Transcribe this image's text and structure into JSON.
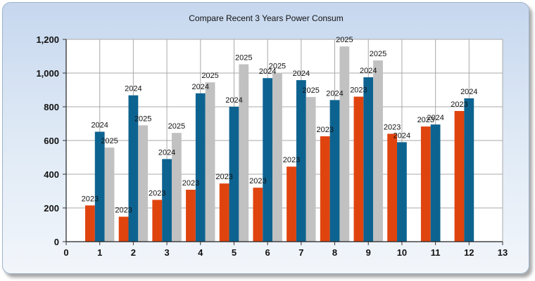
{
  "chart_data": {
    "type": "bar",
    "title": "Compare Recent 3 Years Power Consum",
    "xlabel": "",
    "ylabel": "",
    "categories": [
      1,
      2,
      3,
      4,
      5,
      6,
      7,
      8,
      9,
      10,
      11,
      12
    ],
    "xlim": [
      0,
      13
    ],
    "x_ticks": [
      0,
      1,
      2,
      3,
      4,
      5,
      6,
      7,
      8,
      9,
      10,
      11,
      12,
      13
    ],
    "ylim": [
      0,
      1200
    ],
    "y_ticks": [
      "0",
      "200",
      "400",
      "600",
      "800",
      "1,000",
      "1,200"
    ],
    "grid": true,
    "series": [
      {
        "name": "2023",
        "color": "#e0440e",
        "values": [
          215,
          148,
          248,
          308,
          345,
          320,
          445,
          625,
          860,
          640,
          683,
          775
        ],
        "labels": [
          "2023",
          "2023",
          "2023",
          "2023",
          "2023",
          "2023",
          "2023",
          "2023",
          "2023",
          "2023",
          "2023",
          "2023"
        ]
      },
      {
        "name": "2024",
        "color": "#0d6390",
        "values": [
          652,
          868,
          490,
          880,
          800,
          970,
          958,
          840,
          975,
          590,
          695,
          850
        ],
        "labels": [
          "2024",
          "2024",
          "2024",
          "2024",
          "2024",
          "2024",
          "2024",
          "2024",
          "2024",
          "2024",
          "2024",
          "2024"
        ]
      },
      {
        "name": "2025",
        "color": "#c1c1c1",
        "values": [
          558,
          690,
          645,
          945,
          1052,
          1002,
          858,
          1158,
          1075,
          null,
          null,
          null
        ],
        "labels": [
          "2025",
          "2025",
          "2025",
          "2025",
          "2025",
          "2025",
          "2025",
          "2025",
          "2025",
          "",
          "",
          ""
        ]
      }
    ]
  }
}
